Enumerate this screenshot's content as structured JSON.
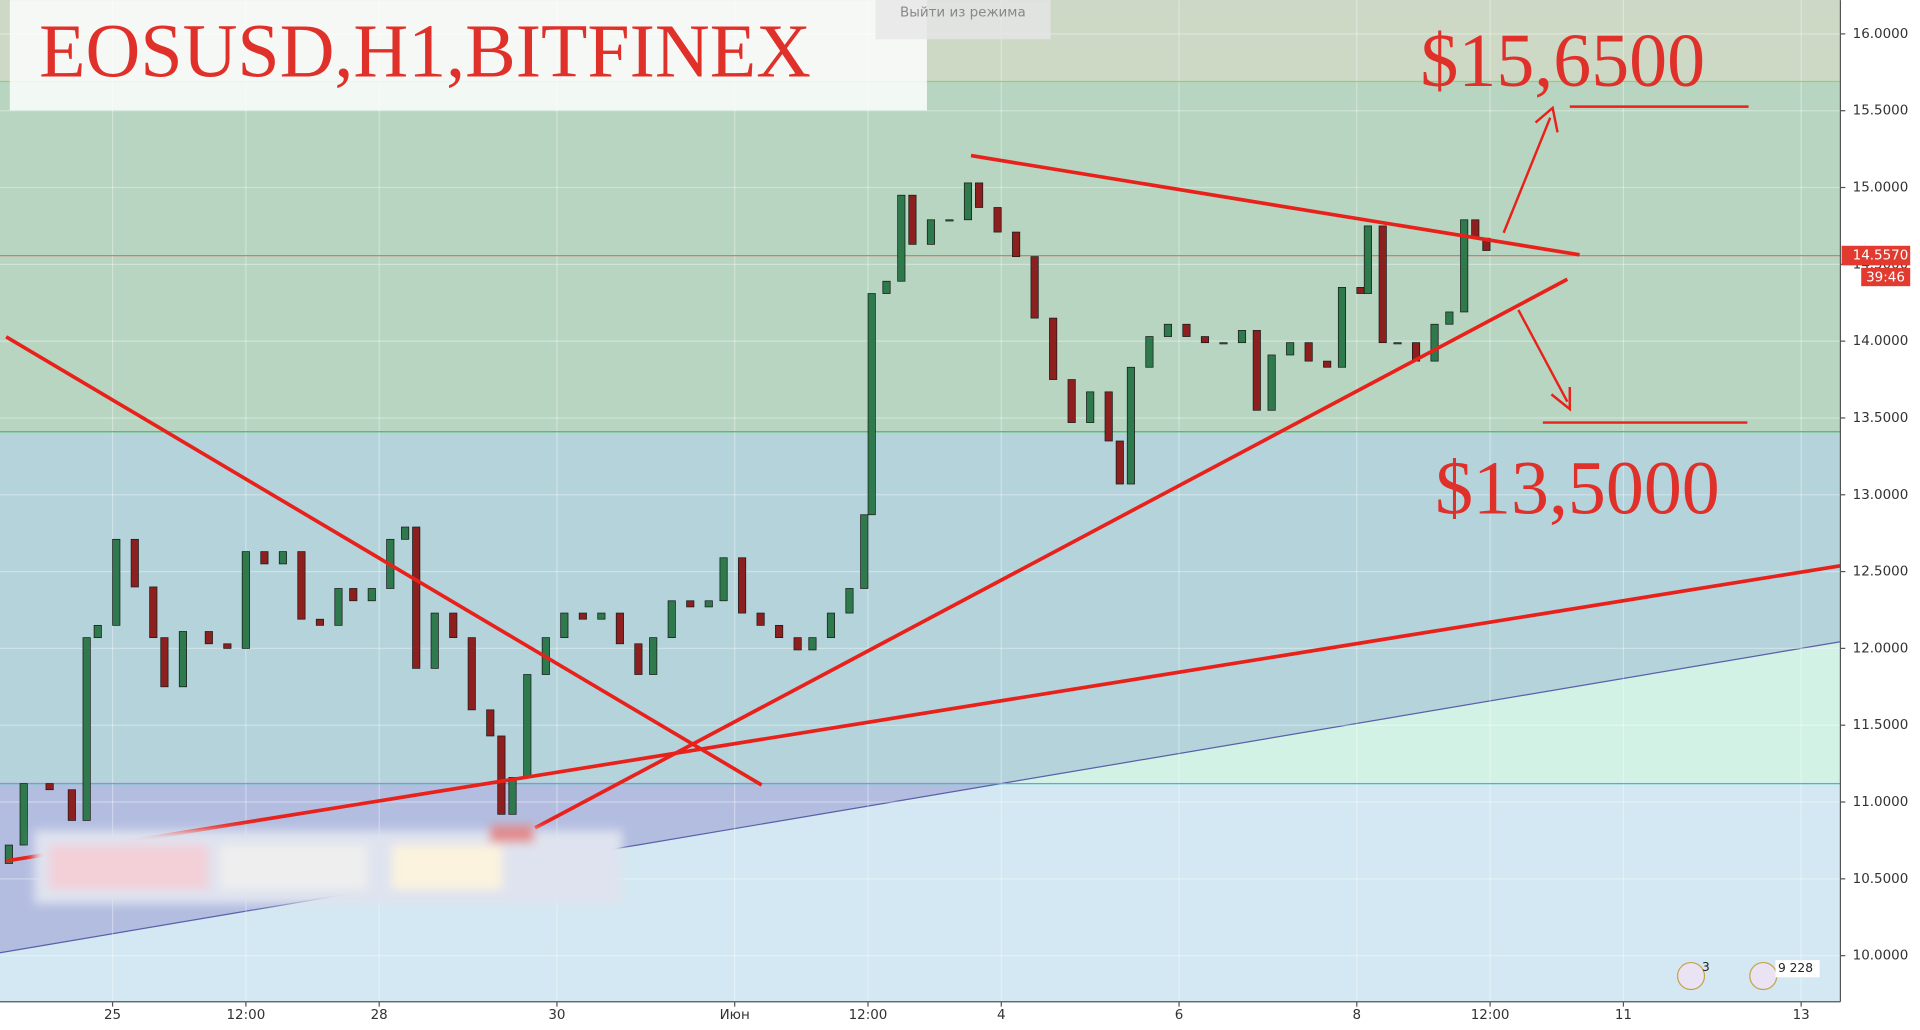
{
  "chart_data": {
    "type": "candlestick",
    "title": "EOSUSD,H1,BITFINEX",
    "annotations": [
      "$15,6500",
      "$13,5000"
    ],
    "button": "Выйти из режима",
    "badges": [
      "3",
      "9 228"
    ],
    "x": [
      -28,
      -24,
      -17,
      -11,
      -7,
      -4,
      1,
      6,
      11,
      14,
      19,
      26,
      31,
      36,
      41,
      46,
      51,
      56,
      61,
      65,
      70,
      75,
      79,
      82,
      87,
      92,
      97,
      102,
      105,
      108,
      112,
      117,
      122,
      127,
      132,
      137,
      142,
      146,
      151,
      156,
      161,
      165,
      170,
      175,
      180,
      185,
      189,
      194,
      199,
      203,
      205,
      209,
      213,
      216,
      221,
      226,
      231,
      234,
      239,
      244,
      249,
      254,
      259,
      264,
      269,
      272,
      275,
      280,
      285,
      290,
      295,
      300,
      305,
      309,
      313,
      318,
      323,
      328,
      332,
      337,
      339,
      343,
      347,
      352,
      357,
      361,
      365,
      368,
      371
    ],
    "open": [
      10.6,
      10.72,
      11.12,
      11.08,
      10.88,
      12.07,
      12.15,
      12.71,
      12.4,
      12.07,
      11.75,
      12.11,
      12.03,
      12.0,
      12.63,
      12.55,
      12.63,
      12.19,
      12.15,
      12.39,
      12.31,
      12.39,
      12.71,
      12.79,
      11.87,
      12.23,
      12.07,
      11.6,
      11.43,
      10.92,
      11.16,
      11.83,
      12.07,
      12.23,
      12.19,
      12.23,
      12.03,
      11.83,
      12.07,
      12.31,
      12.27,
      12.31,
      12.59,
      12.23,
      12.15,
      12.07,
      11.99,
      12.07,
      12.23,
      12.39,
      12.87,
      14.31,
      14.39,
      14.95,
      14.63,
      14.79,
      14.79,
      15.03,
      14.87,
      14.71,
      14.55,
      14.15,
      13.75,
      13.47,
      13.67,
      13.35,
      13.07,
      13.83,
      14.03,
      14.11,
      14.03,
      13.99,
      13.99,
      14.07,
      13.55,
      13.91,
      13.99,
      13.87,
      13.83,
      14.35,
      14.31,
      14.75,
      13.99,
      13.99,
      13.87,
      14.11,
      14.19,
      14.79,
      14.67
    ],
    "close": [
      10.72,
      11.12,
      11.08,
      10.88,
      12.07,
      12.15,
      12.71,
      12.4,
      12.07,
      11.75,
      12.11,
      12.03,
      12.0,
      12.63,
      12.55,
      12.63,
      12.19,
      12.15,
      12.39,
      12.31,
      12.39,
      12.71,
      12.79,
      11.87,
      12.23,
      12.07,
      11.6,
      11.43,
      10.92,
      11.16,
      11.83,
      12.07,
      12.23,
      12.19,
      12.23,
      12.03,
      11.83,
      12.07,
      12.31,
      12.27,
      12.31,
      12.59,
      12.23,
      12.15,
      12.07,
      11.99,
      12.07,
      12.23,
      12.39,
      12.87,
      14.31,
      14.39,
      14.95,
      14.63,
      14.79,
      14.79,
      15.03,
      14.87,
      14.71,
      14.55,
      14.15,
      13.75,
      13.47,
      13.67,
      13.35,
      13.07,
      13.83,
      14.03,
      14.11,
      14.03,
      13.99,
      13.99,
      14.07,
      13.55,
      13.91,
      13.99,
      13.87,
      13.83,
      14.35,
      14.31,
      14.75,
      13.99,
      13.99,
      13.87,
      14.11,
      14.19,
      14.79,
      14.67,
      14.59
    ],
    "up_color": "#2f7a4c",
    "down_color": "#8e1f1f",
    "levels": [
      15.69,
      13.41,
      11.12
    ],
    "last_price": {
      "value": 14.557,
      "label": "14.5570"
    },
    "countdown": "39:46",
    "xlim": [
      -30.4,
      466.6
    ],
    "xticks": [
      {
        "value": 0,
        "label": "25"
      },
      {
        "value": 36,
        "label": "12:00"
      },
      {
        "value": 72,
        "label": "28"
      },
      {
        "value": 120,
        "label": "30"
      },
      {
        "value": 168,
        "label": "Июн"
      },
      {
        "value": 204,
        "label": "12:00"
      },
      {
        "value": 240,
        "label": "4"
      },
      {
        "value": 288,
        "label": "6"
      },
      {
        "value": 336,
        "label": "8"
      },
      {
        "value": 372,
        "label": "12:00"
      },
      {
        "value": 408,
        "label": "11"
      },
      {
        "value": 456,
        "label": "13"
      }
    ],
    "ylim": [
      9.7,
      16.22
    ],
    "yticks": [
      {
        "value": 10,
        "label": "10.0000"
      },
      {
        "value": 10.5,
        "label": "10.5000"
      },
      {
        "value": 11,
        "label": "11.0000"
      },
      {
        "value": 11.5,
        "label": "11.5000"
      },
      {
        "value": 12,
        "label": "12.0000"
      },
      {
        "value": 12.5,
        "label": "12.5000"
      },
      {
        "value": 13,
        "label": "13.0000"
      },
      {
        "value": 13.5,
        "label": "13.5000"
      },
      {
        "value": 14,
        "label": "14.0000"
      },
      {
        "value": 14.5,
        "label": "14.5000"
      },
      {
        "value": 15,
        "label": "15.0000"
      },
      {
        "value": 15.5,
        "label": "15.5000"
      },
      {
        "value": 16,
        "label": "16.0000"
      }
    ],
    "grid": true
  }
}
